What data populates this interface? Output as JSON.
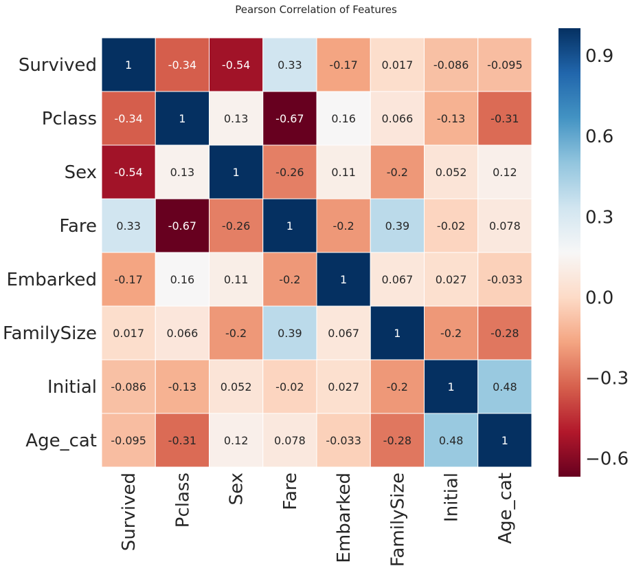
{
  "chart_data": {
    "type": "heatmap",
    "title": "Pearson Correlation of Features",
    "row_labels": [
      "Survived",
      "Pclass",
      "Sex",
      "Fare",
      "Embarked",
      "FamilySize",
      "Initial",
      "Age_cat"
    ],
    "col_labels": [
      "Survived",
      "Pclass",
      "Sex",
      "Fare",
      "Embarked",
      "FamilySize",
      "Initial",
      "Age_cat"
    ],
    "values": [
      [
        1,
        -0.34,
        -0.54,
        0.33,
        -0.17,
        0.017,
        -0.086,
        -0.095
      ],
      [
        -0.34,
        1,
        0.13,
        -0.67,
        0.16,
        0.066,
        -0.13,
        -0.31
      ],
      [
        -0.54,
        0.13,
        1,
        -0.26,
        0.11,
        -0.2,
        0.052,
        0.12
      ],
      [
        0.33,
        -0.67,
        -0.26,
        1,
        -0.2,
        0.39,
        -0.02,
        0.078
      ],
      [
        -0.17,
        0.16,
        0.11,
        -0.2,
        1,
        0.067,
        0.027,
        -0.033
      ],
      [
        0.017,
        0.066,
        -0.2,
        0.39,
        0.067,
        1,
        -0.2,
        -0.28
      ],
      [
        -0.086,
        -0.13,
        0.052,
        -0.02,
        0.027,
        -0.2,
        1,
        0.48
      ],
      [
        -0.095,
        -0.31,
        0.12,
        0.078,
        -0.033,
        -0.28,
        0.48,
        1
      ]
    ],
    "cell_labels": [
      [
        "1",
        "-0.34",
        "-0.54",
        "0.33",
        "-0.17",
        "0.017",
        "-0.086",
        "-0.095"
      ],
      [
        "-0.34",
        "1",
        "0.13",
        "-0.67",
        "0.16",
        "0.066",
        "-0.13",
        "-0.31"
      ],
      [
        "-0.54",
        "0.13",
        "1",
        "-0.26",
        "0.11",
        "-0.2",
        "0.052",
        "0.12"
      ],
      [
        "0.33",
        "-0.67",
        "-0.26",
        "1",
        "-0.2",
        "0.39",
        "-0.02",
        "0.078"
      ],
      [
        "-0.17",
        "0.16",
        "0.11",
        "-0.2",
        "1",
        "0.067",
        "0.027",
        "-0.033"
      ],
      [
        "0.017",
        "0.066",
        "-0.2",
        "0.39",
        "0.067",
        "1",
        "-0.2",
        "-0.28"
      ],
      [
        "-0.086",
        "-0.13",
        "0.052",
        "-0.02",
        "0.027",
        "-0.2",
        "1",
        "0.48"
      ],
      [
        "-0.095",
        "-0.31",
        "0.12",
        "0.078",
        "-0.033",
        "-0.28",
        "0.48",
        "1"
      ]
    ],
    "colormap": "RdBu",
    "colormap_stops": [
      "#67001f",
      "#b2182b",
      "#d6604d",
      "#f4a582",
      "#fddbc7",
      "#f7f7f7",
      "#d1e5f0",
      "#92c5de",
      "#4393c3",
      "#2166ac",
      "#053061"
    ],
    "value_range": [
      -0.67,
      1.0
    ],
    "colorbar": {
      "ticks": [
        -0.6,
        -0.3,
        0.0,
        0.3,
        0.6,
        0.9
      ],
      "tick_labels": [
        "−0.6",
        "−0.3",
        "0.0",
        "0.3",
        "0.6",
        "0.9"
      ]
    },
    "grid": true,
    "grid_color": "#ffffff",
    "text_color_dark": "#262626",
    "text_color_light": "#ffffff"
  }
}
